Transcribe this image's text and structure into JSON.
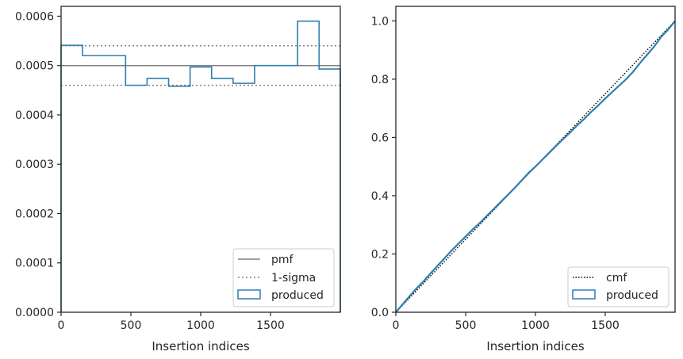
{
  "colors": {
    "hist": "#2f7fad",
    "pmf": "#808080",
    "sigma": "#808080",
    "cmf": "#000000",
    "axes": "#262626"
  },
  "chart_data": [
    {
      "type": "histogram",
      "xlabel": "Insertion indices",
      "ylabel": "",
      "xlim": [
        0,
        2000
      ],
      "ylim": [
        0,
        0.00062
      ],
      "xticks": [
        0,
        500,
        1000,
        1500
      ],
      "xtick_labels": [
        "0",
        "500",
        "1000",
        "1500"
      ],
      "yticks": [
        0,
        0.0001,
        0.0002,
        0.0003,
        0.0004,
        0.0005,
        0.0006
      ],
      "ytick_labels": [
        "0.0000",
        "0.0001",
        "0.0002",
        "0.0003",
        "0.0004",
        "0.0005",
        "0.0006"
      ],
      "bin_edges": [
        0,
        154,
        462,
        616,
        770,
        924,
        1078,
        1232,
        1386,
        1694,
        1848,
        2000
      ],
      "bin_values": [
        0.000541,
        0.00052,
        0.00046,
        0.000474,
        0.000458,
        0.000497,
        0.000474,
        0.000464,
        0.0005,
        0.00059,
        0.000493
      ],
      "pmf": 0.0005,
      "sigma_band": [
        0.00046,
        0.00054
      ],
      "legend": {
        "position": "lower right",
        "entries": [
          "pmf",
          "1-sigma",
          "produced"
        ]
      }
    },
    {
      "type": "line",
      "xlabel": "Insertion indices",
      "ylabel": "",
      "xlim": [
        0,
        2000
      ],
      "ylim": [
        0,
        1.05
      ],
      "xticks": [
        0,
        500,
        1000,
        1500
      ],
      "xtick_labels": [
        "0",
        "500",
        "1000",
        "1500"
      ],
      "yticks": [
        0,
        0.2,
        0.4,
        0.6,
        0.8,
        1.0
      ],
      "ytick_labels": [
        "0.0",
        "0.2",
        "0.4",
        "0.6",
        "0.8",
        "1.0"
      ],
      "series": [
        {
          "name": "cmf",
          "style": "dotted",
          "x": [
            0,
            2000
          ],
          "y": [
            0,
            1
          ]
        },
        {
          "name": "produced",
          "style": "step",
          "x": [
            0,
            50,
            100,
            150,
            200,
            250,
            300,
            350,
            400,
            450,
            500,
            550,
            600,
            650,
            700,
            750,
            800,
            850,
            900,
            950,
            1000,
            1050,
            1100,
            1150,
            1200,
            1250,
            1300,
            1350,
            1400,
            1450,
            1500,
            1550,
            1600,
            1650,
            1700,
            1750,
            1800,
            1850,
            1900,
            1950,
            2000
          ],
          "y": [
            0,
            0.028,
            0.056,
            0.083,
            0.107,
            0.134,
            0.16,
            0.186,
            0.212,
            0.236,
            0.26,
            0.284,
            0.306,
            0.33,
            0.354,
            0.378,
            0.402,
            0.426,
            0.452,
            0.478,
            0.5,
            0.524,
            0.548,
            0.572,
            0.595,
            0.618,
            0.642,
            0.664,
            0.688,
            0.71,
            0.734,
            0.756,
            0.778,
            0.8,
            0.826,
            0.856,
            0.884,
            0.912,
            0.945,
            0.97,
            1.0
          ]
        }
      ],
      "legend": {
        "position": "lower right",
        "entries": [
          "cmf",
          "produced"
        ]
      }
    }
  ]
}
